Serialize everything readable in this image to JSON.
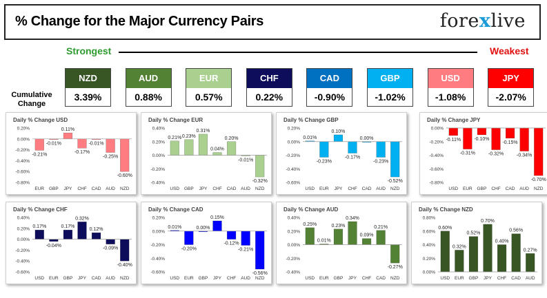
{
  "header": {
    "title": "% Change for the Major Currency Pairs",
    "logo_left": "fore",
    "logo_x": "x",
    "logo_right": "live"
  },
  "ranking": {
    "strongest_label": "Strongest",
    "weakest_label": "Weakest",
    "cumulative_label": "Cumulative Change",
    "items": [
      {
        "code": "NZD",
        "value": "3.39%",
        "color": "#375623"
      },
      {
        "code": "AUD",
        "value": "0.88%",
        "color": "#548235"
      },
      {
        "code": "EUR",
        "value": "0.57%",
        "color": "#a9d08e"
      },
      {
        "code": "CHF",
        "value": "0.22%",
        "color": "#0d0d5c"
      },
      {
        "code": "CAD",
        "value": "-0.90%",
        "color": "#0070c0"
      },
      {
        "code": "GBP",
        "value": "-1.02%",
        "color": "#00b0f0"
      },
      {
        "code": "USD",
        "value": "-1.08%",
        "color": "#ff7c80"
      },
      {
        "code": "JPY",
        "value": "-2.07%",
        "color": "#ff0000"
      }
    ]
  },
  "chart_data": [
    {
      "type": "bar",
      "title": "Daily % Change USD",
      "categories": [
        "EUR",
        "GBP",
        "JPY",
        "CHF",
        "CAD",
        "AUD",
        "NZD"
      ],
      "values": [
        -0.21,
        -0.01,
        0.11,
        -0.17,
        -0.01,
        -0.25,
        -0.6
      ],
      "labels": [
        "-0.21%",
        "-0.01%",
        "0.11%",
        "-0.17%",
        "-0.01%",
        "-0.25%",
        "-0.60%"
      ],
      "yticks": [
        0.2,
        0.0,
        -0.2,
        -0.4,
        -0.6,
        -0.8
      ],
      "ytick_labels": [
        "0.20%",
        "0.00%",
        "-0.20%",
        "-0.40%",
        "-0.60%",
        "-0.80%"
      ],
      "ylim": [
        -0.8,
        0.2
      ],
      "color": "#ff7c80"
    },
    {
      "type": "bar",
      "title": "Daily % Change EUR",
      "categories": [
        "USD",
        "GBP",
        "JPY",
        "CHF",
        "CAD",
        "AUD",
        "NZD"
      ],
      "values": [
        0.21,
        0.23,
        0.31,
        0.04,
        0.2,
        -0.01,
        -0.32
      ],
      "labels": [
        "0.21%",
        "0.23%",
        "0.31%",
        "0.04%",
        "0.20%",
        "-0.01%",
        "-0.32%"
      ],
      "yticks": [
        0.4,
        0.2,
        0.0,
        -0.2,
        -0.4
      ],
      "ytick_labels": [
        "0.40%",
        "0.20%",
        "0.00%",
        "-0.20%",
        "-0.40%"
      ],
      "ylim": [
        -0.4,
        0.4
      ],
      "color": "#a9d08e"
    },
    {
      "type": "bar",
      "title": "Daily % Change GBP",
      "categories": [
        "USD",
        "EUR",
        "JPY",
        "CHF",
        "CAD",
        "AUD",
        "NZD"
      ],
      "values": [
        0.01,
        -0.23,
        0.1,
        -0.17,
        0.0,
        -0.23,
        -0.52
      ],
      "labels": [
        "0.01%",
        "-0.23%",
        "0.10%",
        "-0.17%",
        "0.00%",
        "-0.23%",
        "-0.52%"
      ],
      "yticks": [
        0.2,
        0.0,
        -0.2,
        -0.4,
        -0.6
      ],
      "ytick_labels": [
        "0.20%",
        "0.00%",
        "-0.20%",
        "-0.40%",
        "-0.60%"
      ],
      "ylim": [
        -0.6,
        0.2
      ],
      "color": "#00b0f0"
    },
    {
      "type": "bar",
      "title": "Daily % Change JPY",
      "categories": [
        "USD",
        "EUR",
        "GBP",
        "CHF",
        "CAD",
        "AUD",
        "NZD"
      ],
      "values": [
        -0.11,
        -0.31,
        -0.1,
        -0.32,
        -0.15,
        -0.34,
        -0.7
      ],
      "labels": [
        "-0.11%",
        "-0.31%",
        "-0.10%",
        "-0.32%",
        "-0.15%",
        "-0.34%",
        "-0.70%"
      ],
      "yticks": [
        0.0,
        -0.2,
        -0.4,
        -0.6,
        -0.8
      ],
      "ytick_labels": [
        "0.00%",
        "-0.20%",
        "-0.40%",
        "-0.60%",
        "-0.80%"
      ],
      "ylim": [
        -0.8,
        0.0
      ],
      "color": "#ff0000"
    },
    {
      "type": "bar",
      "title": "Daily % Change CHF",
      "categories": [
        "USD",
        "EUR",
        "GBP",
        "JPY",
        "CAD",
        "AUD",
        "NZD"
      ],
      "values": [
        0.17,
        -0.04,
        0.17,
        0.32,
        0.12,
        -0.09,
        -0.4
      ],
      "labels": [
        "0.17%",
        "-0.04%",
        "0.17%",
        "0.32%",
        "0.12%",
        "-0.09%",
        "-0.40%"
      ],
      "yticks": [
        0.4,
        0.2,
        0.0,
        -0.2,
        -0.4,
        -0.6
      ],
      "ytick_labels": [
        "0.40%",
        "0.20%",
        "0.00%",
        "-0.20%",
        "-0.40%",
        "-0.60%"
      ],
      "ylim": [
        -0.6,
        0.4
      ],
      "color": "#0d0d5c"
    },
    {
      "type": "bar",
      "title": "Daily % Change CAD",
      "categories": [
        "USD",
        "EUR",
        "GBP",
        "JPY",
        "CHF",
        "AUD",
        "NZD"
      ],
      "values": [
        0.01,
        -0.2,
        0.0,
        0.15,
        -0.12,
        -0.21,
        -0.56
      ],
      "labels": [
        "0.01%",
        "-0.20%",
        "0.00%",
        "0.15%",
        "-0.12%",
        "-0.21%",
        "-0.56%"
      ],
      "yticks": [
        0.2,
        0.0,
        -0.2,
        -0.4,
        -0.6
      ],
      "ytick_labels": [
        "0.20%",
        "0.00%",
        "-0.20%",
        "-0.40%",
        "-0.60%"
      ],
      "ylim": [
        -0.6,
        0.2
      ],
      "color": "#0000ff"
    },
    {
      "type": "bar",
      "title": "Daily % Change AUD",
      "categories": [
        "USD",
        "EUR",
        "GBP",
        "JPY",
        "CHF",
        "CAD",
        "NZD"
      ],
      "values": [
        0.25,
        0.01,
        0.23,
        0.34,
        0.09,
        0.21,
        -0.27
      ],
      "labels": [
        "0.25%",
        "0.01%",
        "0.23%",
        "0.34%",
        "0.09%",
        "0.21%",
        "-0.27%"
      ],
      "yticks": [
        0.4,
        0.2,
        0.0,
        -0.2,
        -0.4
      ],
      "ytick_labels": [
        "0.40%",
        "0.20%",
        "0.00%",
        "-0.20%",
        "-0.40%"
      ],
      "ylim": [
        -0.4,
        0.4
      ],
      "color": "#548235"
    },
    {
      "type": "bar",
      "title": "Daily % Change NZD",
      "categories": [
        "USD",
        "EUR",
        "GBP",
        "JPY",
        "CHF",
        "CAD",
        "AUD"
      ],
      "values": [
        0.6,
        0.32,
        0.52,
        0.7,
        0.4,
        0.56,
        0.27
      ],
      "labels": [
        "0.60%",
        "0.32%",
        "0.52%",
        "0.70%",
        "0.40%",
        "0.56%",
        "0.27%"
      ],
      "yticks": [
        0.8,
        0.6,
        0.4,
        0.2,
        0.0
      ],
      "ytick_labels": [
        "0.80%",
        "0.60%",
        "0.40%",
        "0.20%",
        "0.00%"
      ],
      "ylim": [
        0.0,
        0.8
      ],
      "color": "#375623"
    }
  ]
}
